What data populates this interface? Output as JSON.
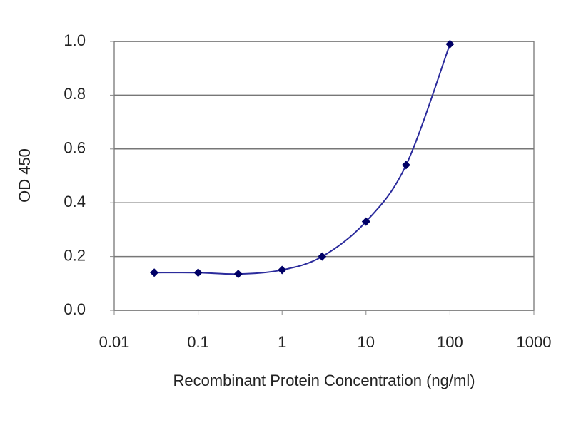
{
  "chart_data": {
    "type": "line",
    "x_label": "Recombinant Protein Concentration (ng/ml)",
    "y_label": "OD 450",
    "x": [
      0.03,
      0.1,
      0.3,
      1,
      3,
      10,
      30,
      100
    ],
    "series": [
      {
        "color": "#2b2b9c",
        "marker_color": "#000066",
        "values": [
          0.14,
          0.14,
          0.135,
          0.15,
          0.2,
          0.33,
          0.54,
          0.99
        ]
      }
    ],
    "xlim": [
      0.01,
      1000
    ],
    "xticks": [
      0.01,
      0.1,
      1,
      10,
      100,
      1000
    ],
    "x_log": true,
    "ylim": [
      0,
      1
    ],
    "yticks": [
      {
        "value": 0,
        "label": "0.0"
      },
      {
        "value": 0.2,
        "label": "0.2"
      },
      {
        "value": 0.4,
        "label": "0.4"
      },
      {
        "value": 0.6,
        "label": "0.6"
      },
      {
        "value": 0.8,
        "label": "0.8"
      },
      {
        "value": 1,
        "label": "1.0"
      }
    ],
    "grid": true
  }
}
